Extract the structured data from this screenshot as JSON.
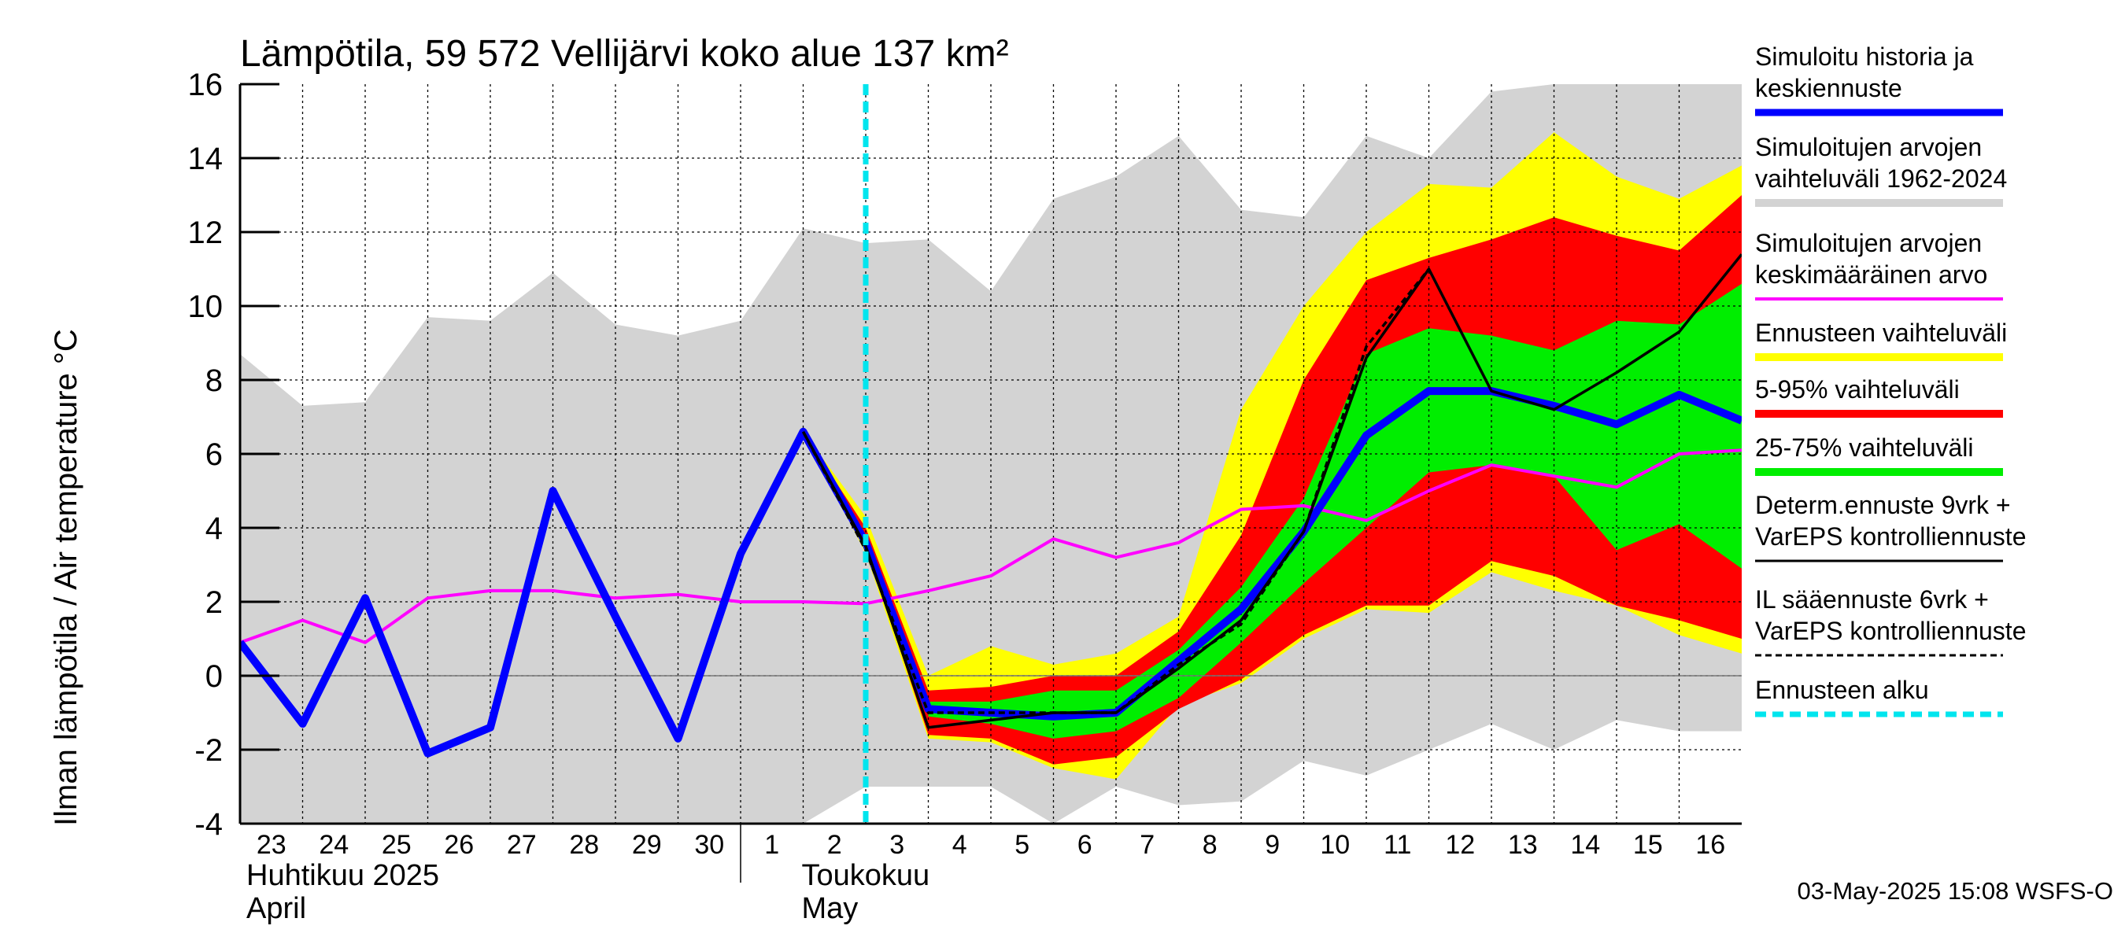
{
  "chart_data": {
    "type": "area",
    "title": "Lämpötila, 59 572 Vellijärvi koko alue 137 km²",
    "ylabel": "Ilman lämpötila / Air temperature   °C",
    "ylim": [
      -4,
      16
    ],
    "yticks": [
      -4,
      -2,
      0,
      2,
      4,
      6,
      8,
      10,
      12,
      14,
      16
    ],
    "grid": true,
    "legend_position": "right",
    "x_days": [
      "23",
      "24",
      "25",
      "26",
      "27",
      "28",
      "29",
      "30",
      "1",
      "2",
      "3",
      "4",
      "5",
      "6",
      "7",
      "8",
      "9",
      "10",
      "11",
      "12",
      "13",
      "14",
      "15",
      "16"
    ],
    "x_months": [
      {
        "fi": "Huhtikuu  2025",
        "en": "April",
        "start_day": "23"
      },
      {
        "fi": "Toukokuu",
        "en": "May",
        "start_day": "2"
      }
    ],
    "forecast_start": 10.0,
    "colors": {
      "history_range": "#d3d3d3",
      "forecast_range": "#ffff00",
      "p5_95": "#ff0000",
      "p25_75": "#00ee00",
      "mean_sim": "#0000ff",
      "avg": "#ff00ff",
      "determ": "#000000",
      "il": "#000000",
      "start": "#00e5ee"
    },
    "series": {
      "history_range": {
        "x": [
          0,
          1,
          2,
          3,
          4,
          5,
          6,
          7,
          8,
          9,
          10,
          11,
          12,
          13,
          14,
          15,
          16,
          17,
          18,
          19,
          20,
          21,
          22,
          23,
          24
        ],
        "upper": [
          8.7,
          7.3,
          7.4,
          9.7,
          9.6,
          10.9,
          9.5,
          9.2,
          9.6,
          12.1,
          11.7,
          11.8,
          10.4,
          12.9,
          13.5,
          14.6,
          12.6,
          12.4,
          14.6,
          14.0,
          15.8,
          16.0,
          16.0,
          16.0,
          16.0
        ],
        "lower": [
          -4.0,
          -4.0,
          -4.0,
          -4.0,
          -4.0,
          -4.0,
          -4.0,
          -4.0,
          -4.0,
          -4.0,
          -3.0,
          -3.0,
          -3.0,
          -4.0,
          -3.0,
          -3.5,
          -3.4,
          -2.3,
          -2.7,
          -2.0,
          -1.3,
          -2.0,
          -1.2,
          -1.5,
          -1.5
        ]
      },
      "forecast_range": {
        "x": [
          9,
          10,
          11,
          12,
          13,
          14,
          15,
          16,
          17,
          18,
          19,
          20,
          21,
          22,
          23,
          24
        ],
        "upper": [
          6.6,
          4.3,
          0.0,
          0.8,
          0.3,
          0.6,
          1.6,
          7.2,
          10.0,
          12.0,
          13.3,
          13.2,
          14.7,
          13.5,
          12.9,
          13.8
        ],
        "lower": [
          6.6,
          3.3,
          -1.7,
          -1.8,
          -2.5,
          -2.8,
          -0.8,
          -0.2,
          1.0,
          1.8,
          1.7,
          2.8,
          2.3,
          1.9,
          1.1,
          0.6
        ]
      },
      "p5_95": {
        "x": [
          9,
          10,
          11,
          12,
          13,
          14,
          15,
          16,
          17,
          18,
          19,
          20,
          21,
          22,
          23,
          24
        ],
        "upper": [
          6.6,
          4.0,
          -0.4,
          -0.3,
          0.0,
          0.0,
          1.2,
          3.8,
          8.0,
          10.7,
          11.3,
          11.8,
          12.4,
          11.9,
          11.5,
          13.0
        ],
        "lower": [
          6.6,
          3.5,
          -1.6,
          -1.7,
          -2.4,
          -2.2,
          -0.9,
          -0.1,
          1.1,
          1.9,
          1.9,
          3.1,
          2.7,
          1.9,
          1.5,
          1.0
        ]
      },
      "p25_75": {
        "x": [
          11,
          12,
          13,
          14,
          15,
          16,
          17,
          18,
          19,
          20,
          21,
          22,
          23,
          24
        ],
        "upper": [
          -0.7,
          -0.7,
          -0.4,
          -0.4,
          0.7,
          2.4,
          4.8,
          8.7,
          9.4,
          9.2,
          8.8,
          9.6,
          9.5,
          10.6
        ],
        "lower": [
          -1.1,
          -1.3,
          -1.7,
          -1.5,
          -0.6,
          0.9,
          2.5,
          4.0,
          5.5,
          5.7,
          5.4,
          3.4,
          4.1,
          2.9
        ]
      },
      "mean_sim": {
        "name": "Simuloitu historia ja keskiennuste",
        "x": [
          0,
          1,
          2,
          3,
          4,
          5,
          6,
          7,
          8,
          9,
          10,
          11,
          12,
          13,
          14,
          15,
          16,
          17,
          18,
          19,
          20,
          21,
          22,
          23,
          24
        ],
        "y": [
          0.9,
          -1.3,
          2.1,
          -2.1,
          -1.4,
          5.0,
          1.6,
          -1.7,
          3.3,
          6.6,
          3.6,
          -0.9,
          -1.0,
          -1.1,
          -1.0,
          0.4,
          1.8,
          3.9,
          6.5,
          7.7,
          7.7,
          7.3,
          6.8,
          7.6,
          6.9
        ]
      },
      "avg": {
        "name": "Simuloitujen arvojen keskimääräinen arvo",
        "x": [
          0,
          1,
          2,
          3,
          4,
          5,
          6,
          7,
          8,
          9,
          10,
          11,
          12,
          13,
          14,
          15,
          16,
          17,
          18,
          19,
          20,
          21,
          22,
          23,
          24
        ],
        "y": [
          0.9,
          1.5,
          0.9,
          2.1,
          2.3,
          2.3,
          2.1,
          2.2,
          2.0,
          2.0,
          1.95,
          2.3,
          2.7,
          3.7,
          3.2,
          3.6,
          4.5,
          4.6,
          4.2,
          5.0,
          5.7,
          5.4,
          5.1,
          6.0,
          6.1
        ]
      },
      "determ": {
        "name": "Determ.ennuste 9vrk + VarEPS kontrolliennuste",
        "x": [
          9,
          10,
          11,
          12,
          13,
          14,
          15,
          16,
          17,
          18,
          19,
          20,
          21,
          22,
          23,
          24
        ],
        "y": [
          6.6,
          3.5,
          -1.4,
          -1.2,
          -1.0,
          -1.0,
          0.2,
          1.5,
          3.9,
          8.6,
          11.0,
          7.7,
          7.2,
          8.2,
          9.3,
          11.4
        ]
      },
      "il": {
        "name": "IL sääennuste 6vrk + VarEPS kontrolliennuste",
        "x": [
          9,
          10,
          11,
          12,
          13,
          14,
          15,
          16,
          17,
          18,
          19
        ],
        "y": [
          6.6,
          3.4,
          -1.0,
          -1.0,
          -1.0,
          -1.0,
          0.3,
          1.4,
          3.9,
          8.9,
          11.0
        ]
      }
    }
  },
  "legend": {
    "items": [
      {
        "line1": "Simuloitu historia ja",
        "line2": "keskiennuste",
        "style": "mean_sim"
      },
      {
        "line1": "Simuloitujen arvojen",
        "line2": "vaihteluväli 1962-2024",
        "style": "history_range"
      },
      {
        "line1": "Simuloitujen arvojen",
        "line2": "keskimääräinen arvo",
        "style": "avg"
      },
      {
        "line1": "Ennusteen vaihteluväli",
        "line2": "",
        "style": "forecast_range"
      },
      {
        "line1": "5-95% vaihteluväli",
        "line2": "",
        "style": "p5_95"
      },
      {
        "line1": "25-75% vaihteluväli",
        "line2": "",
        "style": "p25_75"
      },
      {
        "line1": "Determ.ennuste 9vrk +",
        "line2": "VarEPS kontrolliennuste",
        "style": "determ"
      },
      {
        "line1": "IL sääennuste 6vrk  +",
        "line2": "  VarEPS kontrolliennuste",
        "style": "il"
      },
      {
        "line1": "Ennusteen alku",
        "line2": "",
        "style": "start"
      }
    ]
  },
  "footer": {
    "timestamp": "03-May-2025 15:08 WSFS-O"
  }
}
